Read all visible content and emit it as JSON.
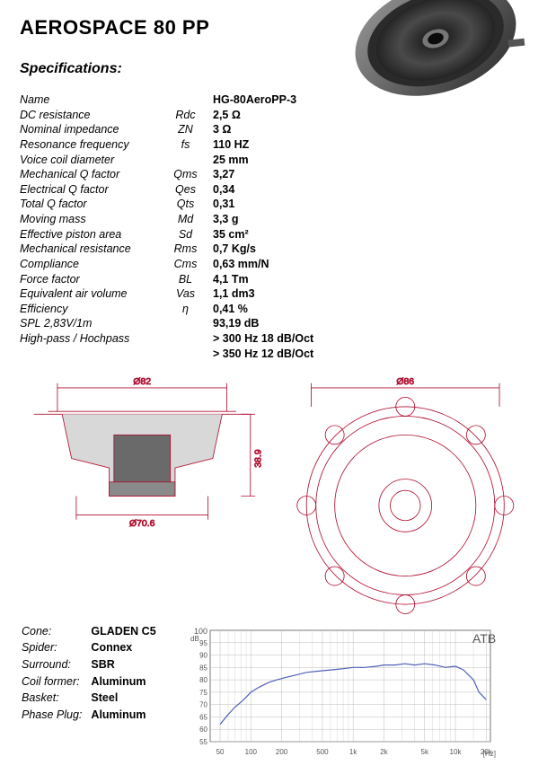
{
  "title": "AEROSPACE 80 PP",
  "subtitle": "Specifications:",
  "specs": [
    {
      "label": "Name",
      "sym": "",
      "val": "HG-80AeroPP-3"
    },
    {
      "label": "DC resistance",
      "sym": "Rdc",
      "val": "2,5 Ω"
    },
    {
      "label": "Nominal impedance",
      "sym": "ZN",
      "val": "3 Ω"
    },
    {
      "label": "Resonance frequency",
      "sym": "fs",
      "val": "110 HZ"
    },
    {
      "label": "Voice coil diameter",
      "sym": "",
      "val": "25 mm"
    },
    {
      "label": "Mechanical Q factor",
      "sym": "Qms",
      "val": "3,27"
    },
    {
      "label": "Electrical Q factor",
      "sym": "Qes",
      "val": "0,34"
    },
    {
      "label": "Total Q factor",
      "sym": "Qts",
      "val": "0,31"
    },
    {
      "label": "Moving mass",
      "sym": "Md",
      "val": "3,3 g"
    },
    {
      "label": "Effective piston area",
      "sym": "Sd",
      "val": "35 cm²"
    },
    {
      "label": "Mechanical resistance",
      "sym": "Rms",
      "val": "0,7 Kg/s"
    },
    {
      "label": "Compliance",
      "sym": "Cms",
      "val": "0,63 mm/N"
    },
    {
      "label": "Force factor",
      "sym": "BL",
      "val": "4,1 Tm"
    },
    {
      "label": "Equivalent air volume",
      "sym": "Vas",
      "val": "1,1 dm3"
    },
    {
      "label": "Efficiency",
      "sym": "η",
      "val": "0,41 %"
    },
    {
      "label": "SPL 2,83V/1m",
      "sym": "",
      "val": "93,19 dB"
    },
    {
      "label": "High-pass / Hochpass",
      "sym": "",
      "val": "> 300 Hz 18 dB/Oct"
    },
    {
      "label": "",
      "sym": "",
      "val": "> 350 Hz 12 dB/Oct"
    }
  ],
  "materials": [
    {
      "label": "Cone:",
      "val": "GLADEN C5"
    },
    {
      "label": "Spider:",
      "val": "Connex"
    },
    {
      "label": "Surround:",
      "val": "SBR"
    },
    {
      "label": "Coil former:",
      "val": "Aluminum"
    },
    {
      "label": "Basket:",
      "val": "Steel"
    },
    {
      "label": "Phase Plug:",
      "val": "Aluminum"
    }
  ],
  "drawing_side": {
    "dia_top": "Ø82",
    "dia_bottom": "Ø70.6",
    "height": "38.9",
    "colors": {
      "line": "#b01030",
      "fill_dark": "#6a6a6a",
      "fill_light": "#d8d8d8"
    }
  },
  "drawing_front": {
    "dia_outer": "Ø86",
    "colors": {
      "line": "#b01030"
    }
  },
  "chart": {
    "title": "ATB",
    "ylabel_top": "dB",
    "xlabel_right": "[Hz]",
    "ylim": [
      55,
      100
    ],
    "yticks": [
      55,
      60,
      65,
      70,
      75,
      80,
      85,
      90,
      95
    ],
    "xticks_labels": [
      "50",
      "100",
      "200",
      "500",
      "1k",
      "2k",
      "5k",
      "10k",
      "20k"
    ],
    "xticks_pos": [
      50,
      100,
      200,
      500,
      1000,
      2000,
      5000,
      10000,
      20000
    ],
    "xlim": [
      40,
      22000
    ],
    "line_color": "#5060b8",
    "grid_color": "#bdbdbd",
    "bg": "#ffffff",
    "data": [
      [
        50,
        62
      ],
      [
        60,
        66
      ],
      [
        70,
        69
      ],
      [
        80,
        71
      ],
      [
        90,
        73
      ],
      [
        100,
        75
      ],
      [
        120,
        77
      ],
      [
        150,
        79
      ],
      [
        180,
        80
      ],
      [
        220,
        81
      ],
      [
        280,
        82
      ],
      [
        350,
        83
      ],
      [
        450,
        83.5
      ],
      [
        600,
        84
      ],
      [
        800,
        84.5
      ],
      [
        1000,
        85
      ],
      [
        1300,
        85
      ],
      [
        1700,
        85.5
      ],
      [
        2000,
        86
      ],
      [
        2600,
        86
      ],
      [
        3200,
        86.5
      ],
      [
        4000,
        86
      ],
      [
        5000,
        86.5
      ],
      [
        6300,
        86
      ],
      [
        8000,
        85
      ],
      [
        10000,
        85.5
      ],
      [
        12000,
        84
      ],
      [
        15000,
        80
      ],
      [
        17000,
        75
      ],
      [
        20000,
        72
      ]
    ]
  }
}
